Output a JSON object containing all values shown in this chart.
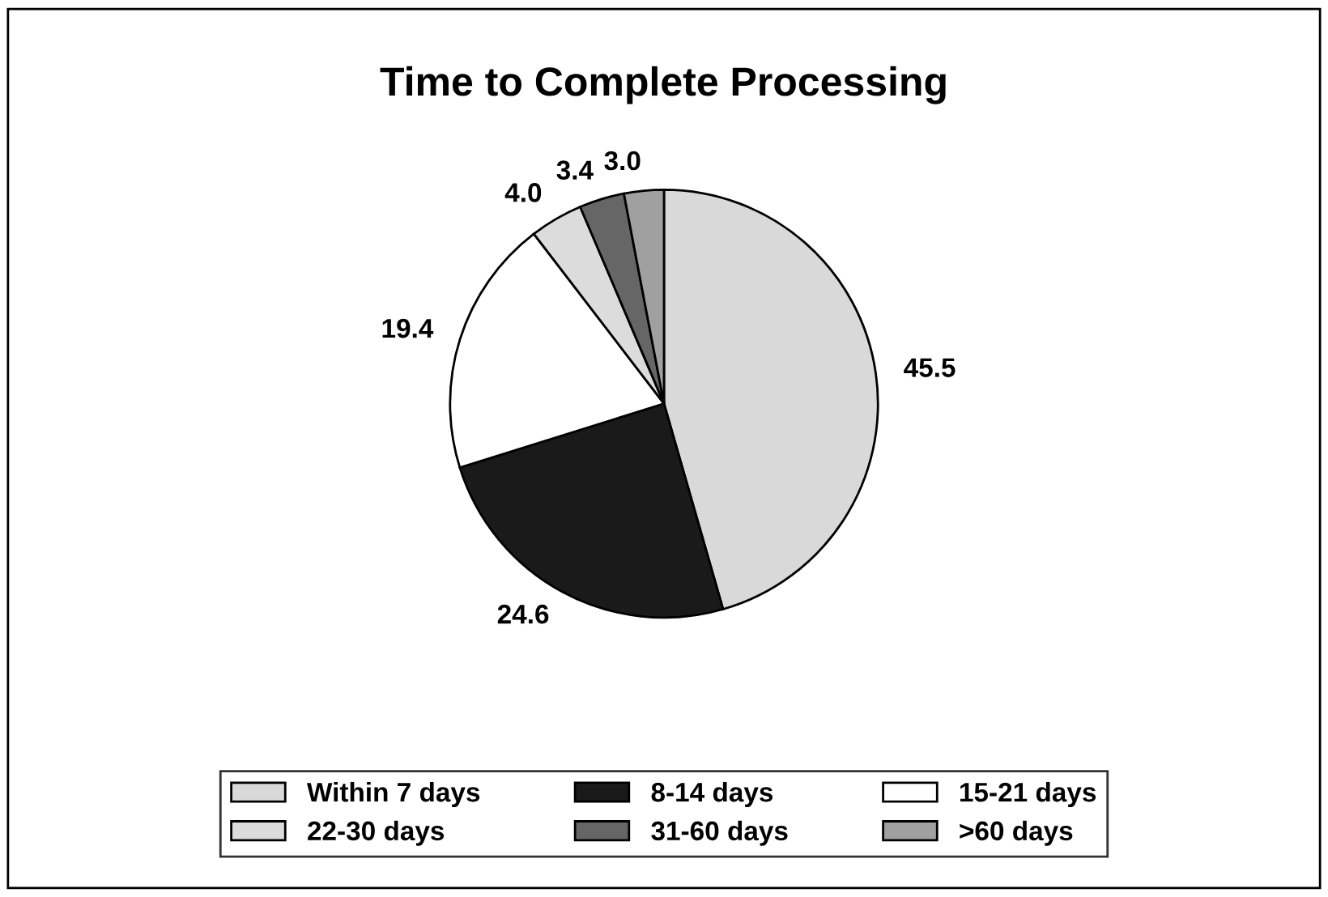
{
  "chart_data": {
    "type": "pie",
    "title": "Time to Complete Processing",
    "categories": [
      "Within 7 days",
      "8-14 days",
      "15-21 days",
      "22-30 days",
      "31-60 days",
      ">60 days"
    ],
    "values": [
      45.5,
      24.6,
      19.4,
      4.0,
      3.4,
      3.0
    ],
    "value_labels": [
      "45.5",
      "24.6",
      "19.4",
      "4.0",
      "3.4",
      "3.0"
    ],
    "colors": [
      "#d9d9d9",
      "#1a1a1a",
      "#ffffff",
      "#dcdcdc",
      "#666666",
      "#a0a0a0"
    ],
    "legend": "bottom"
  }
}
